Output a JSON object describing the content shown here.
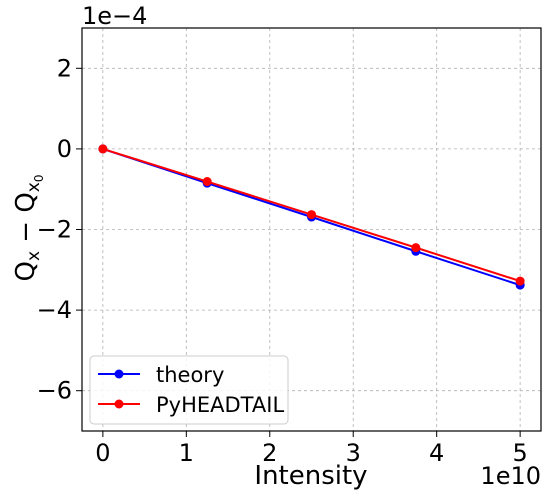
{
  "chart_data": {
    "type": "line",
    "xlabel": "Intensity",
    "ylabel_main": "Q",
    "ylabel_sub1": "x",
    "ylabel_minus": " − Q",
    "ylabel_sub2": "x",
    "ylabel_sub3": "0",
    "x_offset_text": "1e10",
    "y_offset_text": "1e−4",
    "xlim": [
      -0.25,
      5.25
    ],
    "ylim": [
      -7,
      3
    ],
    "xticks": [
      0,
      1,
      2,
      3,
      4,
      5
    ],
    "yticks": [
      2,
      0,
      -2,
      -4,
      -6
    ],
    "xtick_labels": [
      "0",
      "1",
      "2",
      "3",
      "4",
      "5"
    ],
    "ytick_labels": [
      "2",
      "0",
      "−2",
      "−4",
      "−6"
    ],
    "grid": true,
    "legend_position": "lower-left",
    "x": [
      0,
      1.25,
      2.5,
      3.75,
      5
    ],
    "series": [
      {
        "name": "theory",
        "color": "#0000ff",
        "values": [
          0,
          -0.85,
          -1.69,
          -2.54,
          -3.38
        ]
      },
      {
        "name": "PyHEADTAIL",
        "color": "#ff0000",
        "values": [
          0,
          -0.81,
          -1.63,
          -2.45,
          -3.28
        ]
      }
    ]
  }
}
